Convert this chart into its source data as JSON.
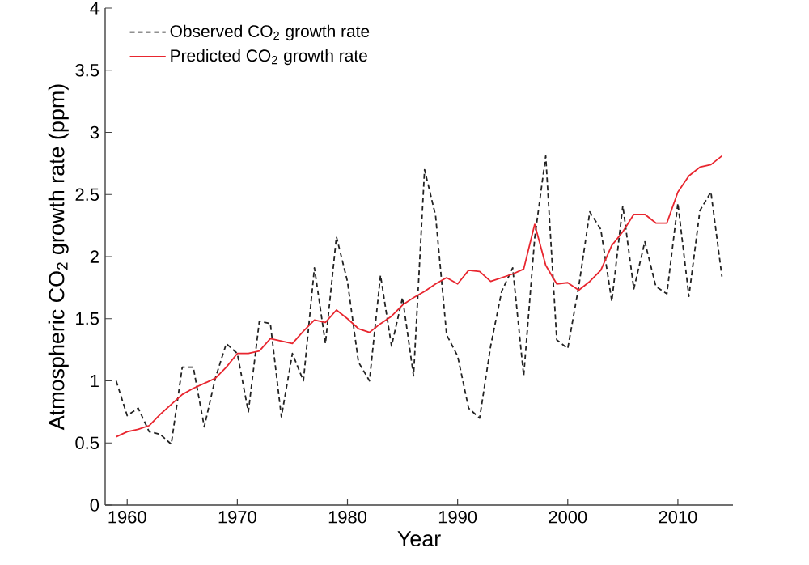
{
  "chart_data": {
    "type": "line",
    "xlabel": "Year",
    "ylabel": "Atmospheric CO$_{2}$ growth rate (ppm)",
    "x": [
      1959,
      1960,
      1961,
      1962,
      1963,
      1964,
      1965,
      1966,
      1967,
      1968,
      1969,
      1970,
      1971,
      1972,
      1973,
      1974,
      1975,
      1976,
      1977,
      1978,
      1979,
      1980,
      1981,
      1982,
      1983,
      1984,
      1985,
      1986,
      1987,
      1988,
      1989,
      1990,
      1991,
      1992,
      1993,
      1994,
      1995,
      1996,
      1997,
      1998,
      1999,
      2000,
      2001,
      2002,
      2003,
      2004,
      2005,
      2006,
      2007,
      2008,
      2009,
      2010,
      2011,
      2012,
      2013,
      2014
    ],
    "series": [
      {
        "name": "Observed CO$_{2}$ growth rate",
        "color": "#222222",
        "line_style": "dashed",
        "values": [
          1.0,
          0.72,
          0.78,
          0.59,
          0.57,
          0.49,
          1.11,
          1.11,
          0.63,
          1.02,
          1.3,
          1.22,
          0.75,
          1.48,
          1.46,
          0.71,
          1.22,
          1.0,
          1.91,
          1.3,
          2.16,
          1.8,
          1.15,
          1.0,
          1.85,
          1.28,
          1.67,
          1.04,
          2.7,
          2.33,
          1.37,
          1.2,
          0.78,
          0.7,
          1.28,
          1.72,
          1.91,
          1.04,
          2.15,
          2.81,
          1.33,
          1.26,
          1.76,
          2.36,
          2.22,
          1.64,
          2.41,
          1.74,
          2.12,
          1.76,
          1.7,
          2.43,
          1.68,
          2.37,
          2.52,
          1.84
        ]
      },
      {
        "name": "Predicted CO$_{2}$ growth rate",
        "color": "#e8262f",
        "line_style": "solid",
        "values": [
          0.55,
          0.59,
          0.61,
          0.64,
          0.73,
          0.81,
          0.89,
          0.94,
          0.98,
          1.02,
          1.11,
          1.22,
          1.22,
          1.24,
          1.34,
          1.32,
          1.3,
          1.4,
          1.49,
          1.47,
          1.57,
          1.5,
          1.42,
          1.39,
          1.46,
          1.52,
          1.61,
          1.67,
          1.72,
          1.78,
          1.83,
          1.78,
          1.89,
          1.88,
          1.8,
          1.83,
          1.86,
          1.9,
          2.26,
          1.93,
          1.78,
          1.79,
          1.73,
          1.8,
          1.89,
          2.09,
          2.2,
          2.34,
          2.34,
          2.27,
          2.27,
          2.52,
          2.65,
          2.72,
          2.74,
          2.81
        ]
      }
    ],
    "xlim": [
      1958,
      2015
    ],
    "ylim": [
      0,
      4
    ],
    "xticks": [
      1960,
      1970,
      1980,
      1990,
      2000,
      2010
    ],
    "yticks": [
      0,
      0.5,
      1,
      1.5,
      2,
      2.5,
      3,
      3.5,
      4
    ],
    "legend": "top left",
    "grid": false,
    "marker": "none"
  }
}
